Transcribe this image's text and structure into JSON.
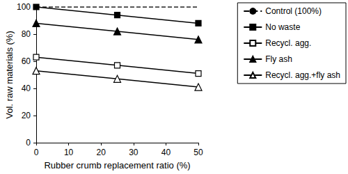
{
  "chart_data": {
    "type": "line",
    "x_label": "Rubber crumb replacement ratio (%)",
    "y_label": "Vol. raw materials (%)",
    "x": [
      0,
      25,
      50
    ],
    "series": [
      {
        "name": "Control (100%)",
        "color": "#000000",
        "marker": "none",
        "line_style": "dashed",
        "values": [
          100,
          100,
          100
        ]
      },
      {
        "name": "No waste",
        "color": "#000000",
        "marker": "square",
        "line_style": "solid",
        "values": [
          100,
          94,
          88
        ]
      },
      {
        "name": "Recycl. agg.",
        "color": "#000000",
        "marker": "open_square",
        "line_style": "solid",
        "values": [
          63,
          57,
          51
        ]
      },
      {
        "name": "Fly ash",
        "color": "#000000",
        "marker": "triangle",
        "line_style": "solid",
        "values": [
          88,
          82,
          76
        ]
      },
      {
        "name": "Recycl. agg.+fly ash",
        "color": "#000000",
        "marker": "open_triangle",
        "line_style": "solid",
        "values": [
          53,
          47,
          41
        ]
      }
    ],
    "xlim": [
      0,
      50
    ],
    "xticks": [
      0,
      10,
      20,
      30,
      40,
      50
    ],
    "ylim": [
      0,
      100
    ],
    "yticks": [
      0,
      20,
      40,
      60,
      80,
      100
    ],
    "grid": false,
    "legend": "right"
  }
}
